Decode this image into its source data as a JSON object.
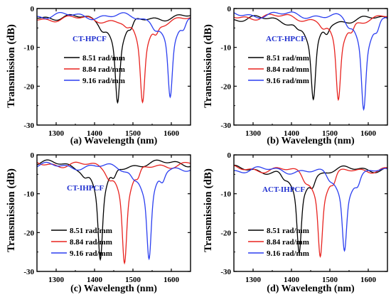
{
  "figure": {
    "ylabel": "Transmission (dB)",
    "colors": {
      "black": "#000000",
      "red": "#e8231f",
      "blue": "#2b3ff0",
      "title": "#1f2fcf"
    }
  },
  "chart_data": [
    {
      "type": "line",
      "panel": "(a)",
      "title": "CT-HPCF",
      "xlabel": "(a) Wavelength (nm)",
      "ylabel": "Transmission (dB)",
      "xlim": [
        1250,
        1650
      ],
      "ylim": [
        -30,
        0
      ],
      "xticks": [
        1300,
        1400,
        1500,
        1600
      ],
      "yticks": [
        0,
        -10,
        -20,
        -30
      ],
      "legend_position": "left",
      "series": [
        {
          "name": "8.51 rad/mm",
          "color": "#000000",
          "dip_center": 1460,
          "dip_depth": -24,
          "baseline": -2.0
        },
        {
          "name": "8.84 rad/mm",
          "color": "#e8231f",
          "dip_center": 1525,
          "dip_depth": -24,
          "baseline": -2.5
        },
        {
          "name": "9.16 rad/mm",
          "color": "#2b3ff0",
          "dip_center": 1597,
          "dip_depth": -23.5,
          "baseline": -1.8
        }
      ]
    },
    {
      "type": "line",
      "panel": "(b)",
      "title": "ACT-HPCF",
      "xlabel": "(b) Wavelength (nm)",
      "ylabel": "",
      "xlim": [
        1250,
        1650
      ],
      "ylim": [
        -30,
        0
      ],
      "xticks": [
        1300,
        1400,
        1500,
        1600
      ],
      "yticks": [
        0,
        -10,
        -20,
        -30
      ],
      "legend_position": "left",
      "series": [
        {
          "name": "8.51 rad/mm",
          "color": "#000000",
          "dip_center": 1457,
          "dip_depth": -24,
          "baseline": -2.5
        },
        {
          "name": "8.84 rad/mm",
          "color": "#e8231f",
          "dip_center": 1522,
          "dip_depth": -24,
          "baseline": -2.0
        },
        {
          "name": "9.16 rad/mm",
          "color": "#2b3ff0",
          "dip_center": 1588,
          "dip_depth": -25.5,
          "baseline": -1.5
        }
      ]
    },
    {
      "type": "line",
      "panel": "(c)",
      "title": "CT-IHPCF",
      "xlabel": "(c) Wavelength (nm)",
      "ylabel": "Transmission (dB)",
      "xlim": [
        1250,
        1650
      ],
      "ylim": [
        -30,
        0
      ],
      "xticks": [
        1300,
        1400,
        1500,
        1600
      ],
      "yticks": [
        0,
        -10,
        -20,
        -30
      ],
      "legend_position": "lower-left",
      "series": [
        {
          "name": "8.51 rad/mm",
          "color": "#000000",
          "dip_center": 1415,
          "dip_depth": -27,
          "baseline": -2.0
        },
        {
          "name": "8.84 rad/mm",
          "color": "#e8231f",
          "dip_center": 1478,
          "dip_depth": -27.5,
          "baseline": -2.2
        },
        {
          "name": "9.16 rad/mm",
          "color": "#2b3ff0",
          "dip_center": 1542,
          "dip_depth": -27,
          "baseline": -2.8
        }
      ]
    },
    {
      "type": "line",
      "panel": "(d)",
      "title": "ACT-IHPCF",
      "xlabel": "(d) Wavelength (nm)",
      "ylabel": "",
      "xlim": [
        1250,
        1650
      ],
      "ylim": [
        -30,
        0
      ],
      "xticks": [
        1300,
        1400,
        1500,
        1600
      ],
      "yticks": [
        0,
        -10,
        -20,
        -30
      ],
      "legend_position": "lower-left",
      "series": [
        {
          "name": "8.51 rad/mm",
          "color": "#000000",
          "dip_center": 1420,
          "dip_depth": -26,
          "baseline": -3.5
        },
        {
          "name": "8.84 rad/mm",
          "color": "#e8231f",
          "dip_center": 1475,
          "dip_depth": -26,
          "baseline": -3.5
        },
        {
          "name": "9.16 rad/mm",
          "color": "#2b3ff0",
          "dip_center": 1538,
          "dip_depth": -24.5,
          "baseline": -3.8
        }
      ]
    }
  ]
}
